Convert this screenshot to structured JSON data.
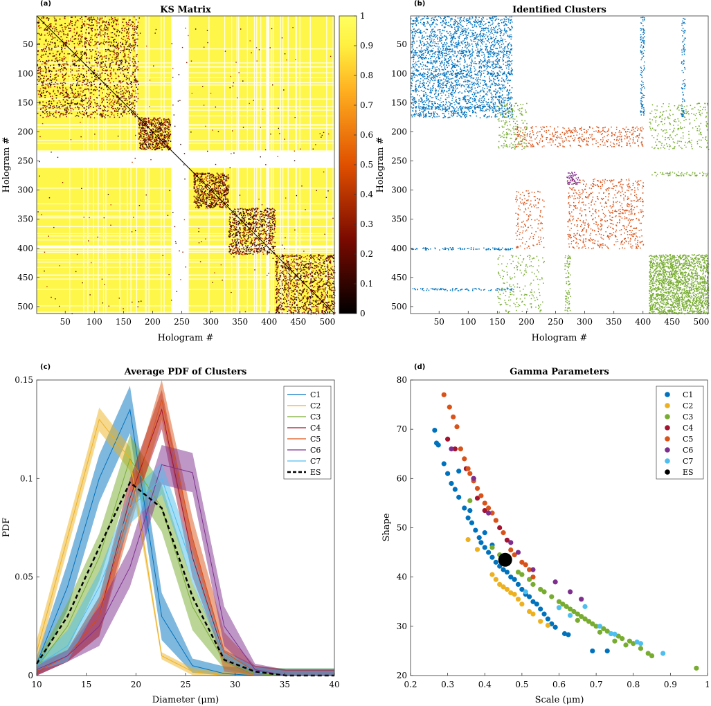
{
  "panels": {
    "a": {
      "label": "(a)",
      "title": "KS Matrix",
      "xlabel": "Hologram #",
      "ylabel": "Hologram #"
    },
    "b": {
      "label": "(b)",
      "title": "Identified Clusters",
      "xlabel": "Hologram #",
      "ylabel": "Hologram #"
    },
    "c": {
      "label": "(c)",
      "title": "Average PDF of Clusters",
      "xlabel": "Diameter (μm)",
      "ylabel": "PDF"
    },
    "d": {
      "label": "(d)",
      "title": "Gamma Parameters",
      "xlabel": "Scale (μm)",
      "ylabel": "Shape"
    }
  },
  "colors": {
    "C1": "#0072BD",
    "C2": "#EDB120",
    "C3": "#77AC30",
    "C4": "#A2142F",
    "C5": "#D95319",
    "C6": "#7E2F8E",
    "C7": "#4DBEEE",
    "ES": "#000000",
    "ks_high": "#FFFF40",
    "ks_mid": "#E05000",
    "ks_low": "#000000"
  },
  "chart_data": [
    {
      "type": "heatmap",
      "title": "KS Matrix",
      "xlabel": "Hologram #",
      "ylabel": "Hologram #",
      "xticks": [
        50,
        100,
        150,
        200,
        250,
        300,
        350,
        400,
        450,
        500
      ],
      "yticks": [
        50,
        100,
        150,
        200,
        250,
        300,
        350,
        400,
        450,
        500
      ],
      "xlim": [
        1,
        512
      ],
      "ylim": [
        1,
        512
      ],
      "colorbar_ticks": [
        "0",
        "0.1",
        "0.2",
        "0.3",
        "0.4",
        "0.5",
        "0.6",
        "0.7",
        "0.8",
        "0.9",
        "1"
      ],
      "blocks": [
        [
          1,
          175
        ],
        [
          175,
          230
        ],
        [
          270,
          330
        ],
        [
          330,
          410
        ],
        [
          410,
          512
        ]
      ],
      "empty_bands": [
        [
          232,
          262
        ],
        [
          395,
          400
        ]
      ]
    },
    {
      "type": "heatmap",
      "title": "Identified Clusters",
      "xlabel": "Hologram #",
      "ylabel": "Hologram #",
      "xticks": [
        50,
        100,
        150,
        200,
        250,
        300,
        350,
        400,
        450,
        500
      ],
      "yticks": [
        50,
        100,
        150,
        200,
        250,
        300,
        350,
        400,
        450,
        500
      ],
      "xlim": [
        1,
        512
      ],
      "ylim": [
        1,
        512
      ],
      "clusters": [
        {
          "name": "C1",
          "range": [
            1,
            175
          ]
        },
        {
          "name": "C3",
          "range": [
            150,
            512
          ]
        },
        {
          "name": "C5",
          "range": [
            180,
            400
          ]
        },
        {
          "name": "C6",
          "range": [
            270,
            290
          ]
        }
      ]
    },
    {
      "type": "line",
      "title": "Average PDF of Clusters",
      "xlabel": "Diameter (μm)",
      "ylabel": "PDF",
      "xlim": [
        10,
        40
      ],
      "ylim": [
        0,
        0.15
      ],
      "xticks": [
        10,
        15,
        20,
        25,
        30,
        35,
        40
      ],
      "yticks": [
        0,
        0.05,
        0.1,
        0.15
      ],
      "x": [
        10,
        13.1,
        16.3,
        19.4,
        22.6,
        25.7,
        28.9,
        32,
        35.1,
        38.3,
        40
      ],
      "series": [
        {
          "name": "C1",
          "values": [
            0.006,
            0.045,
            0.1,
            0.135,
            0.03,
            0.005,
            0.001,
            0.0,
            0.0,
            0.0,
            0.0
          ],
          "band": 0.012
        },
        {
          "name": "C2",
          "values": [
            0.012,
            0.07,
            0.13,
            0.11,
            0.01,
            0.002,
            0.0,
            0.0,
            0.0,
            0.0,
            0.0
          ],
          "band": 0.006
        },
        {
          "name": "C3",
          "values": [
            0.004,
            0.025,
            0.06,
            0.11,
            0.085,
            0.035,
            0.007,
            0.001,
            0.0,
            0.0,
            0.0
          ],
          "band": 0.012
        },
        {
          "name": "C4",
          "values": [
            0.002,
            0.01,
            0.03,
            0.09,
            0.135,
            0.06,
            0.01,
            0.002,
            0.0,
            0.0,
            0.0
          ],
          "band": 0.01
        },
        {
          "name": "C5",
          "values": [
            0.002,
            0.01,
            0.03,
            0.085,
            0.14,
            0.07,
            0.012,
            0.002,
            0.0,
            0.0,
            0.0
          ],
          "band": 0.01
        },
        {
          "name": "C6",
          "values": [
            0.003,
            0.01,
            0.025,
            0.055,
            0.107,
            0.103,
            0.025,
            0.003,
            0.0,
            0.0,
            0.0
          ],
          "band": 0.01
        },
        {
          "name": "C7",
          "values": [
            0.005,
            0.015,
            0.045,
            0.085,
            0.1,
            0.055,
            0.01,
            0.002,
            0.0,
            0.0,
            0.0
          ],
          "band": 0.008
        },
        {
          "name": "ES",
          "values": [
            0.006,
            0.03,
            0.065,
            0.098,
            0.085,
            0.04,
            0.008,
            0.002,
            0.0,
            0.0,
            0.0
          ],
          "dashed": true
        }
      ],
      "legend": [
        "C1",
        "C2",
        "C3",
        "C4",
        "C5",
        "C6",
        "C7",
        "ES"
      ]
    },
    {
      "type": "scatter",
      "title": "Gamma Parameters",
      "xlabel": "Scale (μm)",
      "ylabel": "Shape",
      "xlim": [
        0.2,
        1
      ],
      "ylim": [
        20,
        80
      ],
      "xticks": [
        0.2,
        0.3,
        0.4,
        0.5,
        0.6,
        0.7,
        0.8,
        0.9,
        1
      ],
      "yticks": [
        20,
        30,
        40,
        50,
        60,
        70,
        80
      ],
      "legend": [
        "C1",
        "C2",
        "C3",
        "C4",
        "C5",
        "C6",
        "C7",
        "ES"
      ],
      "series": [
        {
          "name": "C1",
          "points": [
            [
              0.265,
              69.8
            ],
            [
              0.27,
              67.2
            ],
            [
              0.275,
              66.8
            ],
            [
              0.29,
              63.0
            ],
            [
              0.3,
              61.0
            ],
            [
              0.31,
              59.0
            ],
            [
              0.32,
              57.8
            ],
            [
              0.33,
              56.2
            ],
            [
              0.345,
              54.0
            ],
            [
              0.355,
              52.0
            ],
            [
              0.365,
              51.0
            ],
            [
              0.375,
              49.5
            ],
            [
              0.385,
              48.0
            ],
            [
              0.39,
              47.0
            ],
            [
              0.4,
              46.0
            ],
            [
              0.41,
              45.0
            ],
            [
              0.42,
              44.0
            ],
            [
              0.43,
              43.0
            ],
            [
              0.44,
              42.2
            ],
            [
              0.45,
              41.5
            ],
            [
              0.46,
              41.0
            ],
            [
              0.47,
              40.0
            ],
            [
              0.48,
              39.5
            ],
            [
              0.49,
              38.5
            ],
            [
              0.5,
              37.5
            ],
            [
              0.51,
              36.5
            ],
            [
              0.52,
              36.0
            ],
            [
              0.53,
              35.0
            ],
            [
              0.54,
              34.5
            ],
            [
              0.55,
              33.5
            ],
            [
              0.56,
              32.5
            ],
            [
              0.57,
              31.5
            ],
            [
              0.58,
              30.5
            ],
            [
              0.59,
              29.8
            ],
            [
              0.615,
              28.5
            ],
            [
              0.625,
              28.3
            ],
            [
              0.69,
              25.0
            ],
            [
              0.73,
              25.0
            ],
            [
              0.33,
              61.5
            ],
            [
              0.36,
              53.5
            ],
            [
              0.4,
              49.0
            ],
            [
              0.42,
              46.5
            ]
          ]
        },
        {
          "name": "C2",
          "points": [
            [
              0.355,
              47.6
            ],
            [
              0.38,
              45.6
            ],
            [
              0.42,
              40.5
            ],
            [
              0.43,
              39.5
            ],
            [
              0.44,
              38.5
            ],
            [
              0.45,
              38.0
            ],
            [
              0.46,
              37.5
            ],
            [
              0.47,
              36.8
            ],
            [
              0.48,
              36.5
            ],
            [
              0.49,
              35.5
            ],
            [
              0.5,
              34.5
            ],
            [
              0.52,
              33.0
            ],
            [
              0.53,
              32.5
            ],
            [
              0.55,
              31.0
            ],
            [
              0.57,
              30.2
            ]
          ]
        },
        {
          "name": "C3",
          "points": [
            [
              0.36,
              55.5
            ],
            [
              0.42,
              46.0
            ],
            [
              0.44,
              44.5
            ],
            [
              0.46,
              43.0
            ],
            [
              0.49,
              41.0
            ],
            [
              0.5,
              40.5
            ],
            [
              0.52,
              39.5
            ],
            [
              0.53,
              38.5
            ],
            [
              0.55,
              37.5
            ],
            [
              0.56,
              37.0
            ],
            [
              0.58,
              36.0
            ],
            [
              0.6,
              35.0
            ],
            [
              0.61,
              34.5
            ],
            [
              0.62,
              34.0
            ],
            [
              0.63,
              33.5
            ],
            [
              0.64,
              33.0
            ],
            [
              0.65,
              32.5
            ],
            [
              0.66,
              32.0
            ],
            [
              0.67,
              31.5
            ],
            [
              0.68,
              31.0
            ],
            [
              0.69,
              30.5
            ],
            [
              0.7,
              30.0
            ],
            [
              0.72,
              29.5
            ],
            [
              0.73,
              29.0
            ],
            [
              0.74,
              28.5
            ],
            [
              0.76,
              28.0
            ],
            [
              0.77,
              27.5
            ],
            [
              0.79,
              27.0
            ],
            [
              0.8,
              26.5
            ],
            [
              0.82,
              25.5
            ],
            [
              0.84,
              24.5
            ],
            [
              0.85,
              24.0
            ],
            [
              0.97,
              21.5
            ],
            [
              0.6,
              33.8
            ],
            [
              0.65,
              31.2
            ],
            [
              0.71,
              28.8
            ],
            [
              0.75,
              27.0
            ],
            [
              0.78,
              26.2
            ]
          ]
        },
        {
          "name": "C4",
          "points": [
            [
              0.3,
              68.0
            ],
            [
              0.32,
              66.0
            ],
            [
              0.35,
              62.0
            ],
            [
              0.37,
              60.0
            ],
            [
              0.38,
              56.0
            ],
            [
              0.4,
              53.5
            ],
            [
              0.44,
              50.0
            ],
            [
              0.46,
              47.5
            ]
          ]
        },
        {
          "name": "C5",
          "points": [
            [
              0.29,
              77.0
            ],
            [
              0.305,
              74.5
            ],
            [
              0.315,
              72.5
            ],
            [
              0.325,
              70.5
            ],
            [
              0.335,
              66.0
            ],
            [
              0.345,
              64.0
            ],
            [
              0.355,
              62.0
            ],
            [
              0.36,
              61.0
            ],
            [
              0.37,
              59.5
            ],
            [
              0.38,
              58.0
            ],
            [
              0.39,
              56.5
            ],
            [
              0.4,
              55.0
            ],
            [
              0.41,
              54.0
            ],
            [
              0.42,
              53.0
            ],
            [
              0.43,
              51.5
            ],
            [
              0.45,
              49.0
            ],
            [
              0.47,
              45.5
            ],
            [
              0.48,
              44.5
            ],
            [
              0.5,
              43.0
            ],
            [
              0.51,
              42.5
            ],
            [
              0.52,
              41.5
            ],
            [
              0.53,
              40.0
            ]
          ]
        },
        {
          "name": "C6",
          "points": [
            [
              0.31,
              66.0
            ],
            [
              0.37,
              60.0
            ],
            [
              0.41,
              53.0
            ],
            [
              0.47,
              47.0
            ],
            [
              0.49,
              45.0
            ],
            [
              0.53,
              41.5
            ],
            [
              0.59,
              39.0
            ],
            [
              0.63,
              37.0
            ],
            [
              0.66,
              35.5
            ]
          ]
        },
        {
          "name": "C7",
          "points": [
            [
              0.45,
              44.0
            ],
            [
              0.51,
              37.0
            ],
            [
              0.6,
              33.8
            ],
            [
              0.63,
              32.2
            ],
            [
              0.67,
              34.0
            ],
            [
              0.71,
              30.0
            ],
            [
              0.74,
              28.5
            ],
            [
              0.75,
              28.4
            ],
            [
              0.81,
              26.8
            ],
            [
              0.82,
              26.5
            ],
            [
              0.88,
              24.5
            ]
          ]
        },
        {
          "name": "ES",
          "points": [
            [
              0.455,
              43.5
            ]
          ],
          "large": true
        }
      ]
    }
  ]
}
